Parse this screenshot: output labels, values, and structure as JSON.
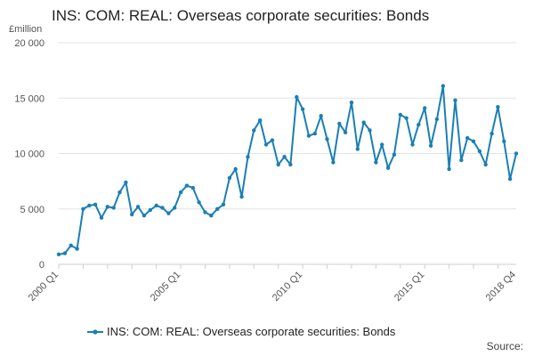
{
  "chart_data": {
    "type": "line",
    "title": "INS: COM: REAL: Overseas corporate securities: Bonds",
    "unit_label": "£million",
    "ylim": [
      0,
      20000
    ],
    "y_ticks": [
      {
        "value": 0,
        "label": "0"
      },
      {
        "value": 5000,
        "label": "5 000"
      },
      {
        "value": 10000,
        "label": "10 000"
      },
      {
        "value": 15000,
        "label": "15 000"
      },
      {
        "value": 20000,
        "label": "20 000"
      }
    ],
    "x_ticks": [
      {
        "index": 0,
        "label": "2000 Q1"
      },
      {
        "index": 20,
        "label": "2005 Q1"
      },
      {
        "index": 40,
        "label": "2010 Q1"
      },
      {
        "index": 60,
        "label": "2015 Q1"
      },
      {
        "index": 75,
        "label": "2018 Q4"
      }
    ],
    "grid": true,
    "legend_position": "bottom",
    "series": [
      {
        "name": "INS: COM: REAL: Overseas corporate securities: Bonds",
        "color": "#1a7fb5",
        "values": [
          900,
          1000,
          1700,
          1400,
          5000,
          5300,
          5400,
          4200,
          5200,
          5100,
          6500,
          7400,
          4500,
          5200,
          4400,
          4900,
          5300,
          5100,
          4600,
          5100,
          6500,
          7100,
          6900,
          5600,
          4700,
          4400,
          5000,
          5400,
          7800,
          8600,
          6100,
          9700,
          12100,
          13000,
          10800,
          11200,
          9000,
          9700,
          9000,
          15100,
          14000,
          11600,
          11800,
          13400,
          11300,
          9200,
          12700,
          11900,
          14600,
          10400,
          12800,
          12100,
          9200,
          10800,
          8700,
          9900,
          13500,
          13200,
          10800,
          12600,
          14100,
          10700,
          13100,
          16100,
          8600,
          14800,
          9400,
          11400,
          11100,
          10200,
          9000,
          11800,
          14200,
          11100,
          7700,
          10000
        ]
      }
    ]
  },
  "source_label": "Source:"
}
